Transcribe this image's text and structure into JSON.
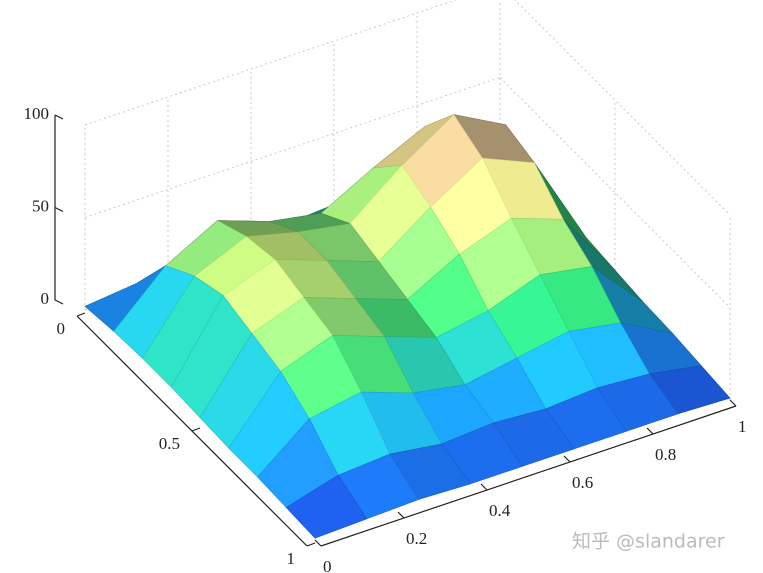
{
  "chart_data": {
    "type": "surface",
    "x": [
      0,
      0.125,
      0.25,
      0.375,
      0.5,
      0.625,
      0.75,
      0.875,
      1
    ],
    "y": [
      0,
      0.125,
      0.25,
      0.375,
      0.5,
      0.625,
      0.75,
      0.875,
      1
    ],
    "z": [
      [
        2,
        5,
        8,
        10,
        10,
        12,
        12,
        10,
        3
      ],
      [
        4,
        30,
        45,
        35,
        30,
        45,
        58,
        40,
        8
      ],
      [
        5,
        40,
        52,
        45,
        40,
        62,
        80,
        65,
        10
      ],
      [
        5,
        45,
        55,
        45,
        35,
        55,
        72,
        60,
        10
      ],
      [
        4,
        40,
        50,
        40,
        30,
        45,
        55,
        45,
        8
      ],
      [
        3,
        35,
        45,
        35,
        25,
        30,
        40,
        35,
        6
      ],
      [
        3,
        25,
        30,
        20,
        15,
        20,
        25,
        20,
        5
      ],
      [
        2,
        10,
        12,
        8,
        10,
        8,
        10,
        8,
        3
      ],
      [
        1,
        2,
        3,
        2,
        2,
        2,
        2,
        2,
        1
      ]
    ],
    "xlim": [
      0,
      1
    ],
    "xticks": [
      0,
      0.2,
      0.4,
      0.6,
      0.8,
      1
    ],
    "ylim": [
      0,
      1
    ],
    "yticks": [
      0,
      0.5,
      1
    ],
    "zlim": [
      0,
      100
    ],
    "zticks": [
      0,
      50,
      100
    ],
    "grid": true,
    "colormap": "terrain",
    "watermark": "知乎 @slandarer"
  }
}
